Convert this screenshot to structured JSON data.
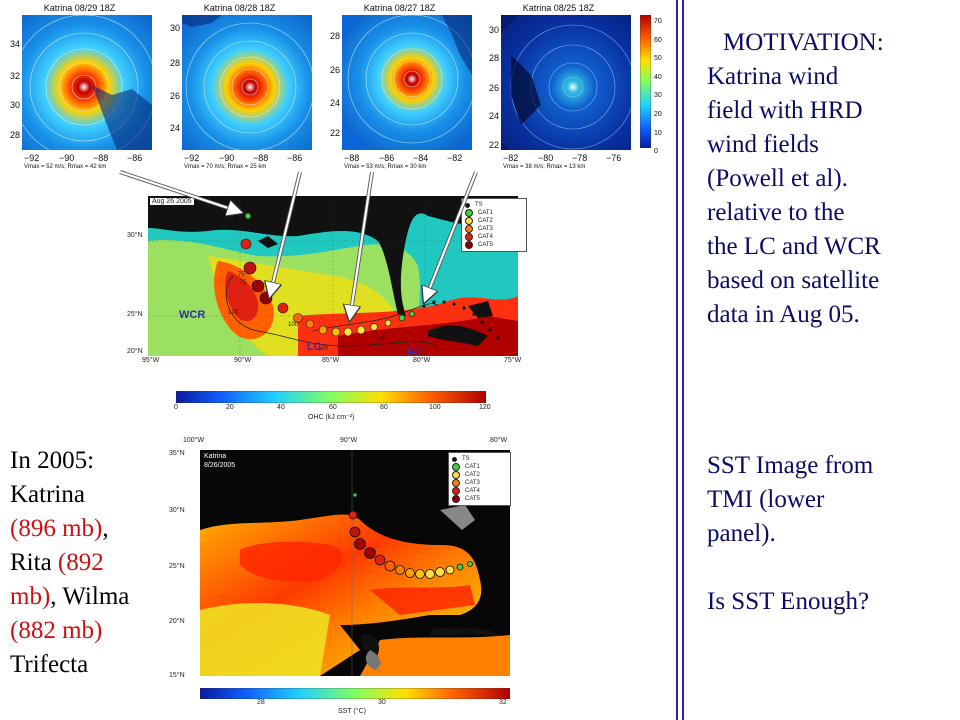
{
  "panels": [
    {
      "title": "Katrina 08/29 18Z",
      "yticks": [
        "34",
        "32",
        "30",
        "28"
      ],
      "xticks": [
        "−92",
        "−90",
        "−88",
        "−86"
      ],
      "caption": "Vmax = 52 m/s; Rmax = 42 km"
    },
    {
      "title": "Katrina 08/28 18Z",
      "yticks": [
        "30",
        "28",
        "26",
        "24"
      ],
      "xticks": [
        "−92",
        "−90",
        "−88",
        "−86"
      ],
      "caption": "Vmax = 70 m/s; Rmax = 25 km"
    },
    {
      "title": "Katrina 08/27 18Z",
      "yticks": [
        "28",
        "26",
        "24",
        "22"
      ],
      "xticks": [
        "−88",
        "−86",
        "−84",
        "−82"
      ],
      "caption": "Vmax = 53 m/s; Rmax = 30 km"
    },
    {
      "title": "Katrina 08/25 18Z",
      "yticks": [
        "30",
        "28",
        "26",
        "24",
        "22"
      ],
      "xticks": [
        "−82",
        "−80",
        "−78",
        "−76"
      ],
      "caption": "Vmax = 38 m/s; Rmax = 13 km"
    }
  ],
  "wind_colorbar": {
    "ticks": [
      "70",
      "60",
      "50",
      "40",
      "30",
      "20",
      "10",
      "0"
    ]
  },
  "ohc_map": {
    "date": "Aug 26 2005",
    "lat_ticks": [
      "30°N",
      "25°N",
      "20°N"
    ],
    "lon_ticks": [
      "95°W",
      "90°W",
      "85°W",
      "80°W",
      "75°W"
    ],
    "labels": {
      "wcr": "WCR",
      "lc": "LC",
      "fc": "FC"
    },
    "contours": [
      "75",
      "120",
      "100",
      "100",
      "120",
      "100",
      "75"
    ],
    "colorbar_ticks": [
      "0",
      "20",
      "40",
      "60",
      "80",
      "100",
      "120"
    ],
    "colorbar_label": "OHC (kJ cm⁻²)"
  },
  "legend_top": [
    "TS",
    "CAT1",
    "CAT2",
    "CAT3",
    "CAT4",
    "CAT5"
  ],
  "sst_map": {
    "storm": "Katrina",
    "date": "8/26/2005",
    "lon_ticks": [
      "100°W",
      "90°W",
      "80°W"
    ],
    "lat_ticks": [
      "35°N",
      "30°N",
      "25°N",
      "20°N",
      "15°N"
    ],
    "colorbar_ticks": [
      "28",
      "30",
      "32"
    ],
    "colorbar_label": "SST (°C)"
  },
  "legend_bottom": [
    "TS",
    "CAT1",
    "CAT2",
    "CAT3",
    "CAT4",
    "CAT5"
  ],
  "motivation": {
    "lines": [
      "MOTIVATION:",
      "Katrina  wind",
      "field with HRD",
      "wind fields",
      "(Powell et al).",
      "relative to the",
      "the LC and WCR",
      "based on satellite",
      "data in  Aug 05."
    ]
  },
  "sst_text": {
    "lines": [
      "SST Image from",
      "TMI (lower",
      "panel).",
      "",
      "Is SST Enough?"
    ]
  },
  "trifecta": {
    "l1": "In 2005:",
    "l2": "Katrina",
    "l3a": "(896 mb)",
    "l3b": ",",
    "l4a": "Rita ",
    "l4b": "(892",
    "l5a": "mb)",
    "l5b": ", Wilma",
    "l6": "(882 mb)",
    "l7": "Trifecta"
  },
  "colors": {
    "divider": "#2a2a9a",
    "text_blue": "#0b0b66",
    "red": "#d01010"
  }
}
